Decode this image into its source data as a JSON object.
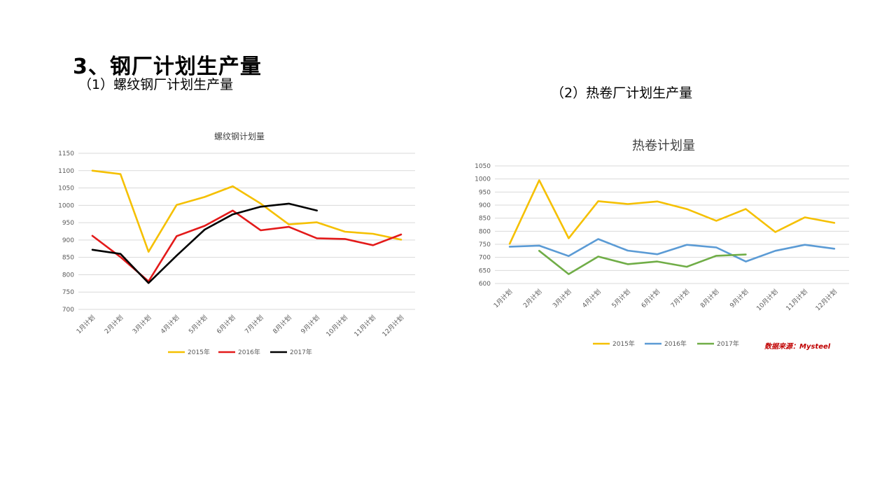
{
  "page": {
    "title": "3、钢厂计划生产量",
    "subtitle_left": "（1）螺纹钢厂计划生产量",
    "subtitle_right": "（2）热卷厂计划生产量",
    "source": "数据来源：Mysteel"
  },
  "chart_data": [
    {
      "type": "line",
      "title": "螺纹钢计划量",
      "xlabel": "",
      "ylabel": "",
      "categories": [
        "1月计划",
        "2月计划",
        "3月计划",
        "4月计划",
        "5月计划",
        "6月计划",
        "7月计划",
        "8月计划",
        "9月计划",
        "10月计划",
        "11月计划",
        "12月计划"
      ],
      "ylim": [
        700,
        1150
      ],
      "yticks": [
        700,
        750,
        800,
        850,
        900,
        950,
        1000,
        1050,
        1100,
        1150
      ],
      "grid": true,
      "legend": "bottom",
      "series": [
        {
          "name": "2015年",
          "color": "#f5c000",
          "values": [
            1100,
            1090,
            866,
            1001,
            1024,
            1055,
            1005,
            945,
            951,
            924,
            918,
            901
          ]
        },
        {
          "name": "2016年",
          "color": "#e31a1a",
          "values": [
            912,
            851,
            781,
            911,
            941,
            985,
            928,
            938,
            905,
            903,
            885,
            916
          ]
        },
        {
          "name": "2017年",
          "color": "#000000",
          "values": [
            872,
            860,
            776,
            855,
            930,
            974,
            996,
            1005,
            985,
            null,
            null,
            null
          ]
        }
      ]
    },
    {
      "type": "line",
      "title": "热卷计划量",
      "xlabel": "",
      "ylabel": "",
      "categories": [
        "1月计划",
        "2月计划",
        "3月计划",
        "4月计划",
        "5月计划",
        "6月计划",
        "7月计划",
        "8月计划",
        "9月计划",
        "10月计划",
        "11月计划",
        "12月计划"
      ],
      "ylim": [
        600,
        1050
      ],
      "yticks": [
        600,
        650,
        700,
        750,
        800,
        850,
        900,
        950,
        1000,
        1050
      ],
      "grid": true,
      "legend": "bottom",
      "series": [
        {
          "name": "2015年",
          "color": "#f5c000",
          "values": [
            752,
            995,
            773,
            915,
            904,
            914,
            885,
            840,
            885,
            797,
            853,
            832
          ]
        },
        {
          "name": "2016年",
          "color": "#5b9bd5",
          "values": [
            741,
            745,
            705,
            770,
            726,
            712,
            748,
            738,
            684,
            725,
            748,
            733
          ]
        },
        {
          "name": "2017年",
          "color": "#70ad47",
          "values": [
            null,
            725,
            636,
            703,
            674,
            684,
            664,
            706,
            711,
            null,
            null,
            null
          ]
        }
      ]
    }
  ]
}
